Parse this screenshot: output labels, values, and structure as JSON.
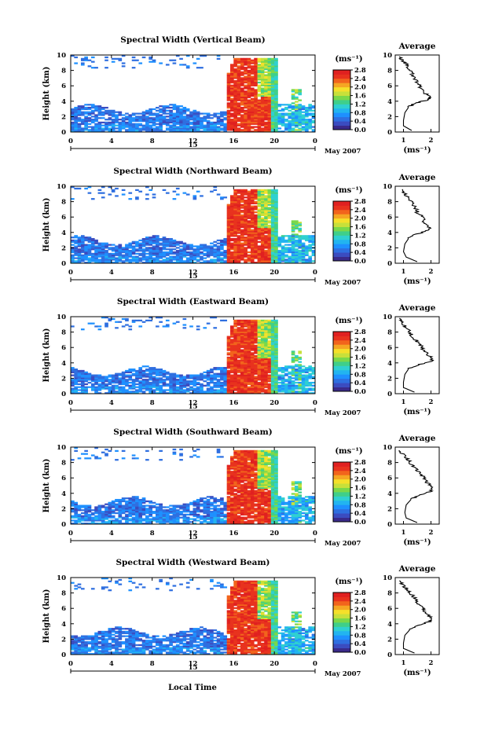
{
  "figure": {
    "xlabel": "Local Time",
    "date_label": "May 2007",
    "day_label": "15",
    "colorbar_unit": "(ms⁻¹)",
    "colorbar_ticks": [
      "0.0",
      "0.4",
      "0.8",
      "1.2",
      "1.6",
      "2.0",
      "2.4",
      "2.8"
    ],
    "average_title": "Average",
    "average_xlabel": "(ms⁻¹)",
    "ylabel": "Height (km)",
    "colorscale": [
      "#3a2a8a",
      "#3b4cc0",
      "#2f6fe0",
      "#1e90ff",
      "#22b4f0",
      "#2fd0d0",
      "#3fcf8a",
      "#7ad84a",
      "#c8e03a",
      "#f5e02a",
      "#f5a623",
      "#f2641c",
      "#e8321e",
      "#e02020"
    ]
  },
  "chart_data": [
    {
      "type": "heatmap",
      "title": "Spectral Width (Vertical Beam)",
      "x_ticks": [
        "0",
        "4",
        "8",
        "12",
        "16",
        "20",
        "0"
      ],
      "y_ticks": [
        "0",
        "2",
        "4",
        "6",
        "8",
        "10"
      ],
      "xlim": [
        0,
        24
      ],
      "ylim": [
        0,
        10
      ],
      "clim": [
        0.0,
        2.8
      ],
      "average": {
        "x_ticks": [
          "1",
          "2"
        ],
        "xlim": [
          0.7,
          2.3
        ],
        "ylim": [
          0,
          10
        ],
        "profile": [
          [
            1.3,
            0.2
          ],
          [
            1.0,
            0.8
          ],
          [
            1.0,
            1.5
          ],
          [
            1.05,
            2.5
          ],
          [
            1.2,
            3.3
          ],
          [
            1.5,
            3.8
          ],
          [
            1.9,
            4.2
          ],
          [
            2.0,
            4.5
          ],
          [
            1.8,
            5.0
          ],
          [
            1.65,
            5.6
          ],
          [
            1.55,
            6.2
          ],
          [
            1.4,
            7.0
          ],
          [
            1.3,
            7.6
          ],
          [
            1.2,
            8.2
          ],
          [
            1.1,
            8.8
          ],
          [
            0.95,
            9.3
          ],
          [
            0.85,
            9.8
          ]
        ]
      }
    },
    {
      "type": "heatmap",
      "title": "Spectral Width (Northward Beam)",
      "x_ticks": [
        "0",
        "4",
        "8",
        "12",
        "16",
        "20",
        "0"
      ],
      "y_ticks": [
        "0",
        "2",
        "4",
        "6",
        "8",
        "10"
      ],
      "xlim": [
        0,
        24
      ],
      "ylim": [
        0,
        10
      ],
      "clim": [
        0.0,
        2.8
      ],
      "average": {
        "x_ticks": [
          "1",
          "2"
        ],
        "xlim": [
          0.7,
          2.3
        ],
        "ylim": [
          0,
          10
        ],
        "profile": [
          [
            1.5,
            0.2
          ],
          [
            1.1,
            0.8
          ],
          [
            1.0,
            1.5
          ],
          [
            1.05,
            2.5
          ],
          [
            1.2,
            3.3
          ],
          [
            1.5,
            3.8
          ],
          [
            1.9,
            4.3
          ],
          [
            1.95,
            4.8
          ],
          [
            1.7,
            5.4
          ],
          [
            1.75,
            6.0
          ],
          [
            1.5,
            6.6
          ],
          [
            1.45,
            7.2
          ],
          [
            1.3,
            7.8
          ],
          [
            1.2,
            8.4
          ],
          [
            1.05,
            9.0
          ],
          [
            0.95,
            9.6
          ]
        ]
      }
    },
    {
      "type": "heatmap",
      "title": "Spectral Width (Eastward Beam)",
      "x_ticks": [
        "0",
        "4",
        "8",
        "12",
        "16",
        "20",
        "0"
      ],
      "y_ticks": [
        "0",
        "2",
        "4",
        "6",
        "8",
        "10"
      ],
      "xlim": [
        0,
        24
      ],
      "ylim": [
        0,
        10
      ],
      "clim": [
        0.0,
        2.8
      ],
      "average": {
        "x_ticks": [
          "1",
          "2"
        ],
        "xlim": [
          0.7,
          2.3
        ],
        "ylim": [
          0,
          10
        ],
        "profile": [
          [
            1.4,
            0.2
          ],
          [
            1.0,
            0.8
          ],
          [
            1.0,
            1.5
          ],
          [
            1.05,
            2.5
          ],
          [
            1.2,
            3.3
          ],
          [
            1.6,
            3.8
          ],
          [
            2.0,
            4.2
          ],
          [
            2.05,
            4.6
          ],
          [
            1.85,
            5.2
          ],
          [
            1.7,
            5.8
          ],
          [
            1.6,
            6.4
          ],
          [
            1.45,
            7.0
          ],
          [
            1.3,
            7.6
          ],
          [
            1.2,
            8.2
          ],
          [
            1.05,
            8.8
          ],
          [
            0.9,
            9.4
          ],
          [
            0.85,
            9.8
          ]
        ]
      }
    },
    {
      "type": "heatmap",
      "title": "Spectral Width (Southward Beam)",
      "x_ticks": [
        "0",
        "4",
        "8",
        "12",
        "16",
        "20",
        "0"
      ],
      "y_ticks": [
        "0",
        "2",
        "4",
        "6",
        "8",
        "10"
      ],
      "xlim": [
        0,
        24
      ],
      "ylim": [
        0,
        10
      ],
      "clim": [
        0.0,
        2.8
      ],
      "average": {
        "x_ticks": [
          "1",
          "2"
        ],
        "xlim": [
          0.7,
          2.3
        ],
        "ylim": [
          0,
          10
        ],
        "profile": [
          [
            1.5,
            0.2
          ],
          [
            1.1,
            0.8
          ],
          [
            1.05,
            1.5
          ],
          [
            1.1,
            2.5
          ],
          [
            1.3,
            3.3
          ],
          [
            1.65,
            3.8
          ],
          [
            2.0,
            4.3
          ],
          [
            2.1,
            4.8
          ],
          [
            1.85,
            5.4
          ],
          [
            1.75,
            6.0
          ],
          [
            1.6,
            6.6
          ],
          [
            1.45,
            7.2
          ],
          [
            1.3,
            7.8
          ],
          [
            1.15,
            8.4
          ],
          [
            1.0,
            9.0
          ],
          [
            0.85,
            9.6
          ]
        ]
      }
    },
    {
      "type": "heatmap",
      "title": "Spectral Width (Westward Beam)",
      "x_ticks": [
        "0",
        "4",
        "8",
        "12",
        "16",
        "20",
        "0"
      ],
      "y_ticks": [
        "0",
        "2",
        "4",
        "6",
        "8",
        "10"
      ],
      "xlim": [
        0,
        24
      ],
      "ylim": [
        0,
        10
      ],
      "clim": [
        0.0,
        2.8
      ],
      "average": {
        "x_ticks": [
          "1",
          "2"
        ],
        "xlim": [
          0.7,
          2.3
        ],
        "ylim": [
          0,
          10
        ],
        "profile": [
          [
            1.4,
            0.2
          ],
          [
            1.0,
            0.8
          ],
          [
            1.0,
            1.5
          ],
          [
            1.05,
            2.5
          ],
          [
            1.25,
            3.3
          ],
          [
            1.6,
            3.8
          ],
          [
            1.95,
            4.3
          ],
          [
            2.0,
            4.8
          ],
          [
            1.8,
            5.4
          ],
          [
            1.75,
            6.0
          ],
          [
            1.55,
            6.6
          ],
          [
            1.45,
            7.2
          ],
          [
            1.3,
            7.8
          ],
          [
            1.15,
            8.4
          ],
          [
            1.0,
            9.0
          ],
          [
            0.85,
            9.6
          ]
        ]
      }
    }
  ]
}
